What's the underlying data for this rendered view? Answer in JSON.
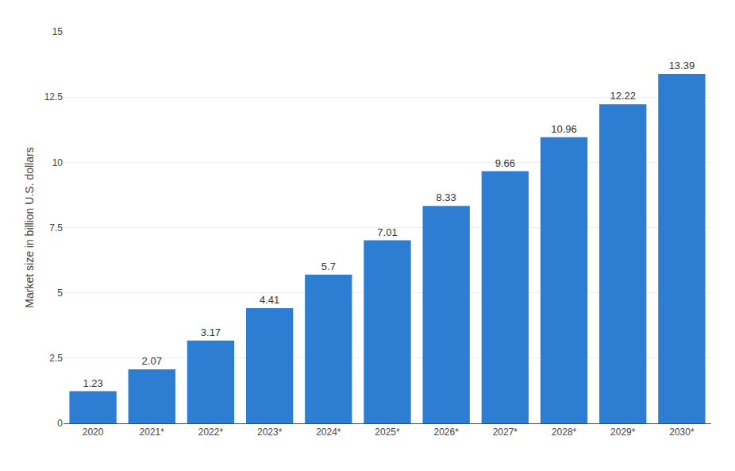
{
  "chart_data": {
    "type": "bar",
    "categories": [
      "2020",
      "2021*",
      "2022*",
      "2023*",
      "2024*",
      "2025*",
      "2026*",
      "2027*",
      "2028*",
      "2029*",
      "2030*"
    ],
    "values": [
      1.23,
      2.07,
      3.17,
      4.41,
      5.7,
      7.01,
      8.33,
      9.66,
      10.96,
      12.22,
      13.39
    ],
    "color": "#2d7dd2",
    "ylabel": "Market size in billion U.S. dollars",
    "ylim": [
      0,
      15
    ],
    "yticks": [
      0,
      2.5,
      5,
      7.5,
      10,
      12.5,
      15
    ],
    "grid": true,
    "data_labels": true
  }
}
